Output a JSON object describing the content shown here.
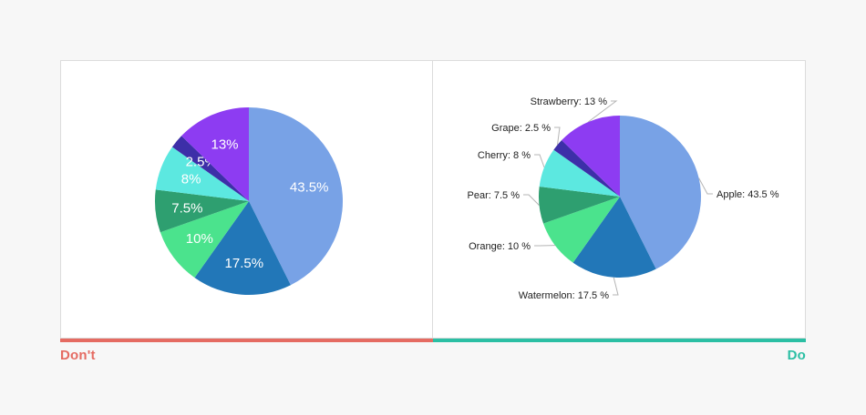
{
  "captions": {
    "dont": "Don't",
    "do": "Do"
  },
  "colors": {
    "dont_accent": "#e56b62",
    "do_accent": "#2bbfa4"
  },
  "chart_data": [
    {
      "type": "pie",
      "panel": "dont",
      "start_angle_deg": 0,
      "direction": "clockwise",
      "slices": [
        {
          "label": "",
          "value": 43.5,
          "text": "43.5%",
          "color": "#78a2e6"
        },
        {
          "label": "",
          "value": 17.5,
          "text": "17.5%",
          "color": "#2277b8"
        },
        {
          "label": "",
          "value": 10,
          "text": "10%",
          "color": "#4be38d"
        },
        {
          "label": "",
          "value": 7.5,
          "text": "7.5%",
          "color": "#2e9f70"
        },
        {
          "label": "",
          "value": 8,
          "text": "8%",
          "color": "#5ce8e0"
        },
        {
          "label": "",
          "value": 2.5,
          "text": "2.5%",
          "color": "#3d2fa8"
        },
        {
          "label": "",
          "value": 13,
          "text": "13%",
          "color": "#8d3cf2"
        }
      ]
    },
    {
      "type": "pie",
      "panel": "do",
      "start_angle_deg": 0,
      "direction": "clockwise",
      "slices": [
        {
          "label": "Apple",
          "value": 43.5,
          "text": "Apple: 43.5 %",
          "color": "#78a2e6"
        },
        {
          "label": "Watermelon",
          "value": 17.5,
          "text": "Watermelon: 17.5 %",
          "color": "#2277b8"
        },
        {
          "label": "Orange",
          "value": 10,
          "text": "Orange: 10 %",
          "color": "#4be38d"
        },
        {
          "label": "Pear",
          "value": 7.5,
          "text": "Pear: 7.5 %",
          "color": "#2e9f70"
        },
        {
          "label": "Cherry",
          "value": 8,
          "text": "Cherry: 8 %",
          "color": "#5ce8e0"
        },
        {
          "label": "Grape",
          "value": 2.5,
          "text": "Grape: 2.5 %",
          "color": "#3d2fa8"
        },
        {
          "label": "Strawberry",
          "value": 13,
          "text": "Strawberry: 13 %",
          "color": "#8d3cf2"
        }
      ]
    }
  ]
}
